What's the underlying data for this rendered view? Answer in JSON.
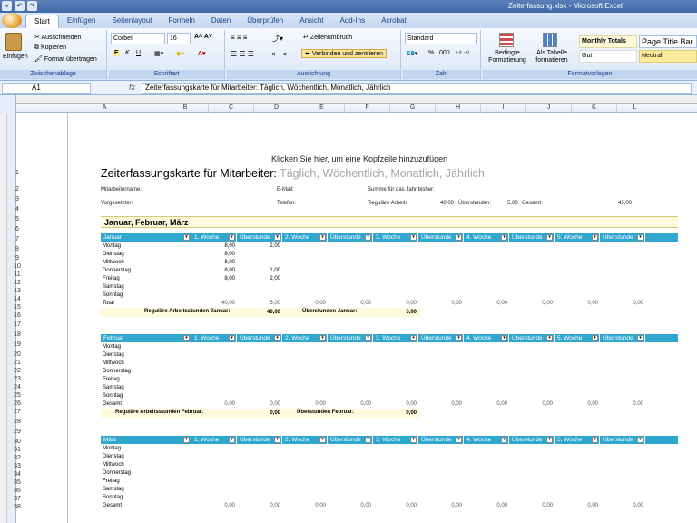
{
  "window": {
    "title": "Zeiterfassung.xlsx - Microsoft Excel",
    "quick_access": [
      "save-icon",
      "undo-icon",
      "redo-icon"
    ]
  },
  "tabs": [
    "Start",
    "Einfügen",
    "Seitenlayout",
    "Formeln",
    "Daten",
    "Überprüfen",
    "Ansicht",
    "Add-Ins",
    "Acrobat"
  ],
  "ribbon": {
    "clipboard": {
      "paste": "Einfügen",
      "cut": "Ausschneiden",
      "copy": "Kopieren",
      "format_painter": "Format übertragen",
      "label": "Zwischenablage"
    },
    "font": {
      "name": "Corbel",
      "size": "16",
      "bold": "F",
      "italic": "K",
      "underline": "U",
      "label": "Schriftart"
    },
    "alignment": {
      "wrap": "Zeilenumbruch",
      "merge": "Verbinden und zentrieren",
      "label": "Ausrichtung"
    },
    "number": {
      "format": "Standard",
      "percent": "%",
      "thousands": "000",
      "label": "Zahl"
    },
    "styles": {
      "conditional": "Bedingte Formatierung",
      "as_table": "Als Tabelle formatieren",
      "monthly_totals": "Monthly Totals",
      "page_title": "Page Title Bar",
      "good": "Gut",
      "neutral": "Neutral",
      "label": "Formatvorlagen"
    }
  },
  "formula_bar": {
    "cell": "A1",
    "fx": "fx",
    "content": "Zeiterfassungskarte für Mitarbeiter: Täglich, Wöchentlich, Monatlich, Jährlich"
  },
  "columns": [
    "A",
    "B",
    "C",
    "D",
    "E",
    "F",
    "G",
    "H",
    "I",
    "J",
    "K",
    "L"
  ],
  "rows": [
    "1",
    "2",
    "3",
    "4",
    "5",
    "6",
    "7",
    "8",
    "9",
    "10",
    "11",
    "12",
    "13",
    "14",
    "15",
    "16",
    "17",
    "18",
    "19",
    "20",
    "21",
    "22",
    "23",
    "24",
    "25",
    "26",
    "27",
    "28",
    "29",
    "30",
    "31",
    "32",
    "33",
    "34",
    "35",
    "36",
    "37",
    "38"
  ],
  "sheet": {
    "header_hint": "Klicken Sie hier, um eine Kopfzeile hinzuzufügen",
    "title_main": "Zeiterfassungskarte für Mitarbeiter:",
    "title_sub": " Täglich, Wöchentlich, Monatlich, Jährlich",
    "info": {
      "name": "Mitarbeitername:",
      "email": "E-Mail:",
      "ytd": "Summe für das Jahr bisher:",
      "supervisor": "Vorgesetzter:",
      "phone": "Telefon:",
      "regular": "Reguläre Arbeits",
      "regular_val": "40,00",
      "overtime": "Überstunden:",
      "overtime_val": "5,00",
      "total": "Gesamt:",
      "total_val": "45,00"
    },
    "quarter_label": "Januar, Februar, März",
    "week_headers": [
      "1. Woche",
      "Überstunde",
      "2. Woche",
      "Überstunde",
      "3. Woche",
      "Überstunde",
      "4. Woche",
      "Überstunde",
      "5. Woche",
      "Überstunde"
    ],
    "days": [
      "Montag",
      "Dienstag",
      "Mittwoch",
      "Donnerstag",
      "Freitag",
      "Samstag",
      "Sonntag"
    ],
    "total_label": "Gesamt",
    "months": [
      {
        "name": "Januar",
        "total_row_label": "Total",
        "week1": [
          "8,00",
          "8,00",
          "8,00",
          "8,00",
          "8,00",
          "",
          ""
        ],
        "ot1": [
          "2,00",
          "",
          "",
          "1,00",
          "2,00",
          "",
          ""
        ],
        "totals": [
          "40,00",
          "5,00",
          "0,00",
          "0,00",
          "0,00",
          "0,00",
          "0,00",
          "0,00",
          "0,00",
          "0,00"
        ],
        "reg_label": "Reguläre Arbeitsstunden Januar:",
        "reg_val": "40,00",
        "ot_label": "Überstunden Januar:",
        "ot_val": "5,00"
      },
      {
        "name": "Februar",
        "total_row_label": "Gesamt",
        "week1": [
          "",
          "",
          "",
          "",
          "",
          "",
          ""
        ],
        "ot1": [
          "",
          "",
          "",
          "",
          "",
          "",
          ""
        ],
        "totals": [
          "0,00",
          "0,00",
          "0,00",
          "0,00",
          "0,00",
          "0,00",
          "0,00",
          "0,00",
          "0,00",
          "0,00"
        ],
        "reg_label": "Reguläre Arbeitsstunden Februar:",
        "reg_val": "0,00",
        "ot_label": "Überstunden Februar:",
        "ot_val": "0,00"
      },
      {
        "name": "März",
        "total_row_label": "Gesamt",
        "week1": [
          "",
          "",
          "",
          "",
          "",
          "",
          ""
        ],
        "ot1": [
          "",
          "",
          "",
          "",
          "",
          "",
          ""
        ],
        "totals": [
          "0,00",
          "0,00",
          "0,00",
          "0,00",
          "0,00",
          "0,00",
          "0,00",
          "0,00",
          "0,00",
          "0,00"
        ]
      }
    ]
  },
  "colors": {
    "accent": "#2fa7cf",
    "band": "#fffadc",
    "ribbon": "#dbe7f6",
    "title_grey": "#a6a6a6"
  }
}
